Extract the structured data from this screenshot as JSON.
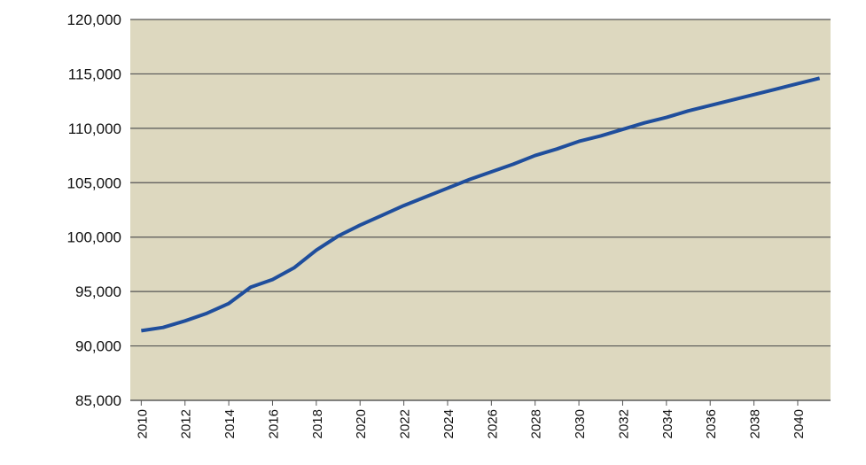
{
  "chart_data": {
    "type": "line",
    "x": [
      2010,
      2011,
      2012,
      2013,
      2014,
      2015,
      2016,
      2017,
      2018,
      2019,
      2020,
      2021,
      2022,
      2023,
      2024,
      2025,
      2026,
      2027,
      2028,
      2029,
      2030,
      2031,
      2032,
      2033,
      2034,
      2035,
      2036,
      2037,
      2038,
      2039,
      2040,
      2041
    ],
    "series": [
      {
        "color": "#1f4e9c",
        "values": [
          91400,
          91700,
          92300,
          93000,
          93900,
          95400,
          96100,
          97200,
          98800,
          100100,
          101100,
          102000,
          102900,
          103700,
          104500,
          105300,
          106000,
          106700,
          107500,
          108100,
          108800,
          109300,
          109900,
          110500,
          111000,
          111600,
          112100,
          112600,
          113100,
          113600,
          114100,
          114600
        ]
      }
    ],
    "xlim": [
      2009.5,
      2041.5
    ],
    "xticks": [
      2010,
      2012,
      2014,
      2016,
      2018,
      2020,
      2022,
      2024,
      2026,
      2028,
      2030,
      2032,
      2034,
      2036,
      2038,
      2040
    ],
    "ylim": [
      85000,
      120000
    ],
    "yticks": [
      {
        "value": 85000,
        "label": "85,000"
      },
      {
        "value": 90000,
        "label": "90,000"
      },
      {
        "value": 95000,
        "label": "95,000"
      },
      {
        "value": 100000,
        "label": "100,000"
      },
      {
        "value": 105000,
        "label": "105,000"
      },
      {
        "value": 110000,
        "label": "110,000"
      },
      {
        "value": 115000,
        "label": "115,000"
      },
      {
        "value": 120000,
        "label": "120,000"
      }
    ],
    "grid": true,
    "plot_background": "#ddd8bf"
  }
}
